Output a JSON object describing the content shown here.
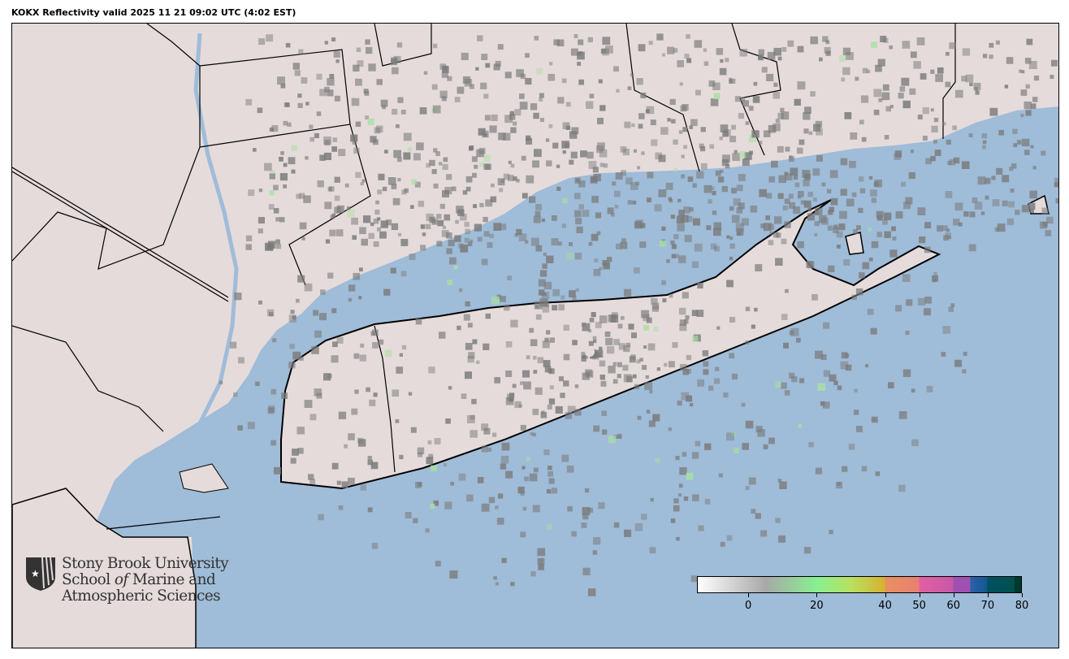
{
  "title": "KOKX Reflectivity valid 2025 11 21 09:02 UTC (4:02 EST)",
  "colors": {
    "ocean": "#9fbcd8",
    "land": "#e5dbdb",
    "echo": "#7a7a7a",
    "border": "#000000"
  },
  "logo": {
    "line1": "Stony Brook University",
    "line2a": "School ",
    "line2b": "of",
    "line2c": " Marine and",
    "line3": "Atmospheric Sciences",
    "icon": "shield-star-icon"
  },
  "colorbar": {
    "min": -15,
    "max": 80,
    "ticks": [
      {
        "v": 0,
        "label": "0"
      },
      {
        "v": 20,
        "label": "20"
      },
      {
        "v": 40,
        "label": "40"
      },
      {
        "v": 50,
        "label": "50"
      },
      {
        "v": 60,
        "label": "60"
      },
      {
        "v": 70,
        "label": "70"
      },
      {
        "v": 80,
        "label": "80"
      }
    ],
    "stops": [
      {
        "v": -15,
        "c": "#ffffff"
      },
      {
        "v": 5,
        "c": "#a8a8a8"
      },
      {
        "v": 20,
        "c": "#88f090"
      },
      {
        "v": 30,
        "c": "#b8e060"
      },
      {
        "v": 40,
        "c": "#d8b030"
      },
      {
        "v": 40.1,
        "c": "#e89060"
      },
      {
        "v": 50,
        "c": "#e88070"
      },
      {
        "v": 50.1,
        "c": "#e060a0"
      },
      {
        "v": 60,
        "c": "#c858a8"
      },
      {
        "v": 60.1,
        "c": "#a050b0"
      },
      {
        "v": 65,
        "c": "#a050b0"
      },
      {
        "v": 65.1,
        "c": "#3060a8"
      },
      {
        "v": 70,
        "c": "#105890"
      },
      {
        "v": 70.1,
        "c": "#005060"
      },
      {
        "v": 78,
        "c": "#005050"
      },
      {
        "v": 78.1,
        "c": "#003830"
      },
      {
        "v": 80,
        "c": "#003830"
      }
    ]
  }
}
